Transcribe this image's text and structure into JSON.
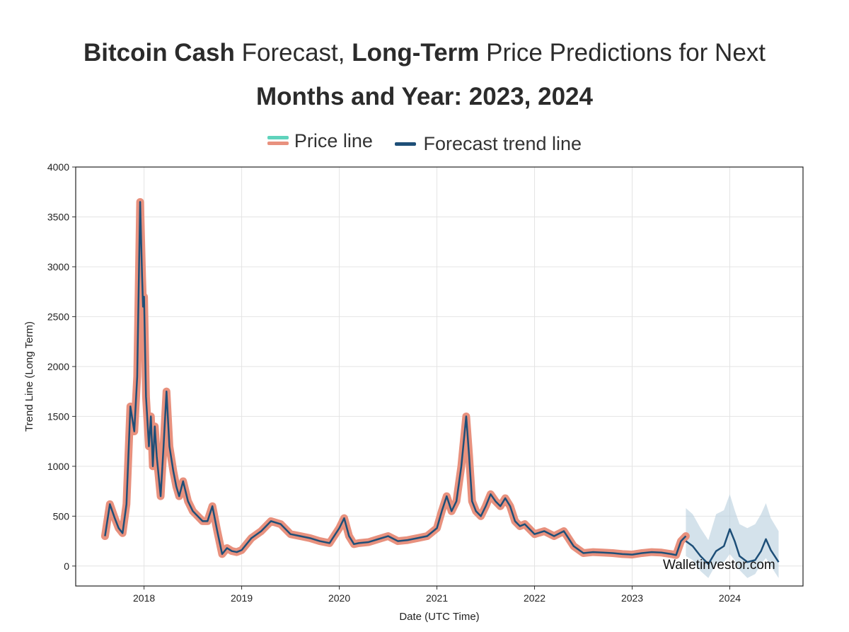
{
  "title": {
    "part1_bold": "Bitcoin Cash",
    "part2": "Forecast,",
    "part3_bold": "Long-Term",
    "part4": "Price Predictions for Next",
    "line2": "Months and Year: 2023, 2024"
  },
  "chart_data": {
    "type": "line",
    "title": "Bitcoin Cash Forecast, Long-Term Price Predictions for Next Months and Year: 2023, 2024",
    "xlabel": "Date (UTC Time)",
    "ylabel": "Trend Line (Long Term)",
    "ylim": [
      -200,
      4000
    ],
    "xlim": [
      2017.3,
      2024.75
    ],
    "x_ticks": [
      "2018",
      "2019",
      "2020",
      "2021",
      "2022",
      "2023",
      "2024"
    ],
    "y_ticks": [
      0,
      500,
      1000,
      1500,
      2000,
      2500,
      3000,
      3500,
      4000
    ],
    "grid": true,
    "legend_position": "top-center",
    "legend": [
      "Price line",
      "Forecast trend line"
    ],
    "watermark": "Walletinvestor.com",
    "colors": {
      "price_line": "#e8917e",
      "price_line_alt": "#5fd3bc",
      "forecast_line": "#1e4f78",
      "confidence_band": "#b7cfdd"
    },
    "series": [
      {
        "name": "Price line",
        "x": [
          2017.6,
          2017.65,
          2017.7,
          2017.74,
          2017.78,
          2017.82,
          2017.86,
          2017.9,
          2017.93,
          2017.96,
          2017.98,
          2017.99,
          2018.0,
          2018.02,
          2018.05,
          2018.07,
          2018.09,
          2018.11,
          2018.13,
          2018.15,
          2018.17,
          2018.2,
          2018.23,
          2018.26,
          2018.3,
          2018.33,
          2018.36,
          2018.4,
          2018.45,
          2018.5,
          2018.55,
          2018.6,
          2018.65,
          2018.7,
          2018.75,
          2018.8,
          2018.85,
          2018.9,
          2018.95,
          2019.0,
          2019.1,
          2019.2,
          2019.3,
          2019.4,
          2019.5,
          2019.6,
          2019.7,
          2019.8,
          2019.9,
          2020.0,
          2020.05,
          2020.1,
          2020.15,
          2020.2,
          2020.3,
          2020.4,
          2020.5,
          2020.6,
          2020.7,
          2020.8,
          2020.9,
          2021.0,
          2021.05,
          2021.1,
          2021.15,
          2021.2,
          2021.25,
          2021.3,
          2021.33,
          2021.36,
          2021.4,
          2021.45,
          2021.5,
          2021.55,
          2021.6,
          2021.65,
          2021.7,
          2021.75,
          2021.8,
          2021.85,
          2021.9,
          2022.0,
          2022.1,
          2022.2,
          2022.3,
          2022.4,
          2022.5,
          2022.6,
          2022.7,
          2022.8,
          2022.9,
          2023.0,
          2023.1,
          2023.2,
          2023.3,
          2023.4,
          2023.45,
          2023.5,
          2023.55
        ],
        "values": [
          300,
          620,
          480,
          380,
          330,
          620,
          1600,
          1350,
          1900,
          3650,
          2900,
          2600,
          2700,
          1700,
          1200,
          1500,
          1000,
          1400,
          1100,
          900,
          700,
          1200,
          1750,
          1200,
          950,
          800,
          700,
          850,
          650,
          550,
          500,
          450,
          450,
          600,
          350,
          120,
          180,
          150,
          140,
          160,
          280,
          350,
          450,
          420,
          320,
          300,
          280,
          250,
          230,
          380,
          480,
          300,
          220,
          230,
          240,
          270,
          300,
          250,
          260,
          280,
          300,
          380,
          550,
          700,
          550,
          650,
          1000,
          1500,
          1100,
          650,
          550,
          500,
          600,
          720,
          650,
          600,
          680,
          600,
          450,
          400,
          420,
          320,
          350,
          300,
          350,
          200,
          130,
          140,
          135,
          130,
          120,
          115,
          130,
          140,
          135,
          120,
          110,
          250,
          300
        ]
      },
      {
        "name": "Forecast trend line",
        "x": [
          2023.55,
          2023.62,
          2023.7,
          2023.78,
          2023.86,
          2023.94,
          2024.0,
          2024.05,
          2024.1,
          2024.18,
          2024.26,
          2024.32,
          2024.37,
          2024.42,
          2024.5
        ],
        "values": [
          250,
          200,
          100,
          20,
          150,
          200,
          370,
          250,
          100,
          40,
          60,
          150,
          270,
          160,
          40
        ],
        "band_lower": [
          100,
          60,
          -50,
          -120,
          20,
          40,
          120,
          60,
          -40,
          -120,
          -80,
          20,
          80,
          0,
          -120
        ],
        "band_upper": [
          580,
          520,
          380,
          260,
          520,
          560,
          720,
          560,
          420,
          380,
          420,
          520,
          630,
          480,
          350
        ]
      }
    ]
  }
}
